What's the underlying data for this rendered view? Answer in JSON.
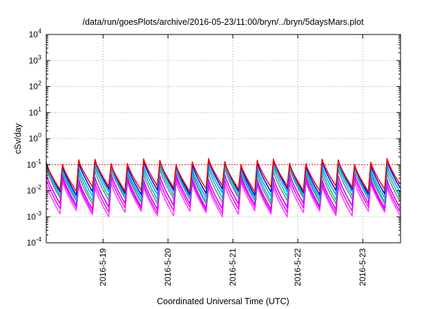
{
  "chart_data": {
    "type": "line",
    "title": "/data/run/goesPlots/archive/2016-05-23/11:00/bryn/../bryn/5daysMars.plot",
    "xlabel": "Coordinated Universal Time (UTC)",
    "ylabel": "cSv/day",
    "yscale": "log",
    "ylim": [
      0.0001,
      10000
    ],
    "xlim": [
      "2016-05-18T03:00",
      "2016-05-23T14:00"
    ],
    "grid": true,
    "y_ticks": [
      {
        "value": 0.0001,
        "base": "10",
        "exp": "-4"
      },
      {
        "value": 0.001,
        "base": "10",
        "exp": "-3"
      },
      {
        "value": 0.01,
        "base": "10",
        "exp": "-2"
      },
      {
        "value": 0.1,
        "base": "10",
        "exp": "-1"
      },
      {
        "value": 1,
        "base": "10",
        "exp": "0"
      },
      {
        "value": 10,
        "base": "10",
        "exp": "1"
      },
      {
        "value": 100,
        "base": "10",
        "exp": "2"
      },
      {
        "value": 1000,
        "base": "10",
        "exp": "3"
      },
      {
        "value": 10000,
        "base": "10",
        "exp": "4"
      }
    ],
    "x_ticks": [
      "2016-5-19",
      "2016-5-20",
      "2016-5-21",
      "2016-5-22",
      "2016-5-23"
    ],
    "reference_line": {
      "value": 0.1,
      "color": "#ff0000"
    },
    "cycle_hours": 6,
    "series": [
      {
        "color": "#ff0000",
        "peak": 0.13,
        "trough": 0.012
      },
      {
        "color": "#0000ff",
        "peak": 0.12,
        "trough": 0.009
      },
      {
        "color": "#00a0ff",
        "peak": 0.09,
        "trough": 0.007
      },
      {
        "color": "#00c8a0",
        "peak": 0.075,
        "trough": 0.005
      },
      {
        "color": "#8080a0",
        "peak": 0.055,
        "trough": 0.004
      },
      {
        "color": "#c000ff",
        "peak": 0.035,
        "trough": 0.0025
      },
      {
        "color": "#ff00ff",
        "peak": 0.025,
        "trough": 0.0018
      },
      {
        "color": "#ff40ff",
        "peak": 0.018,
        "trough": 0.0013
      }
    ]
  }
}
